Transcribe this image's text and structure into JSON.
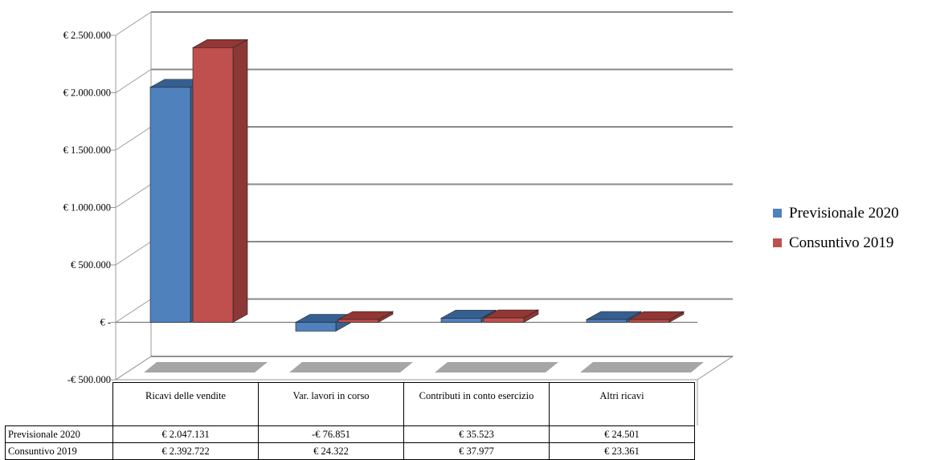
{
  "chart_data": {
    "type": "bar",
    "categories": [
      "Ricavi delle vendite",
      "Var. lavori in corso",
      "Contributi in conto esercizio",
      "Altri ricavi"
    ],
    "series": [
      {
        "name": "Previsionale 2020",
        "values": [
          2047131,
          -76851,
          35523,
          24501
        ],
        "labels": [
          "€ 2.047.131",
          "-€ 76.851",
          "€ 35.523",
          "€ 24.501"
        ],
        "color": "#4f81bd",
        "side_color": "#3a6291",
        "top_color": "#365f91"
      },
      {
        "name": "Consuntivo 2019",
        "values": [
          2392722,
          24322,
          37977,
          23361
        ],
        "labels": [
          "€ 2.392.722",
          "€ 24.322",
          "€ 37.977",
          "€ 23.361"
        ],
        "color": "#c0504d",
        "side_color": "#8c3836",
        "top_color": "#943634"
      }
    ],
    "yticks": [
      2500000,
      2000000,
      1500000,
      1000000,
      500000,
      0,
      -500000
    ],
    "ytick_labels": [
      "€ 2.500.000",
      "€ 2.000.000",
      "€ 1.500.000",
      "€ 1.000.000",
      "€ 500.000",
      "€ -",
      "-€ 500.000"
    ],
    "ylim": [
      -500000,
      2500000
    ],
    "grid": true,
    "legend_position": "right",
    "three_d": true,
    "data_table": true
  }
}
